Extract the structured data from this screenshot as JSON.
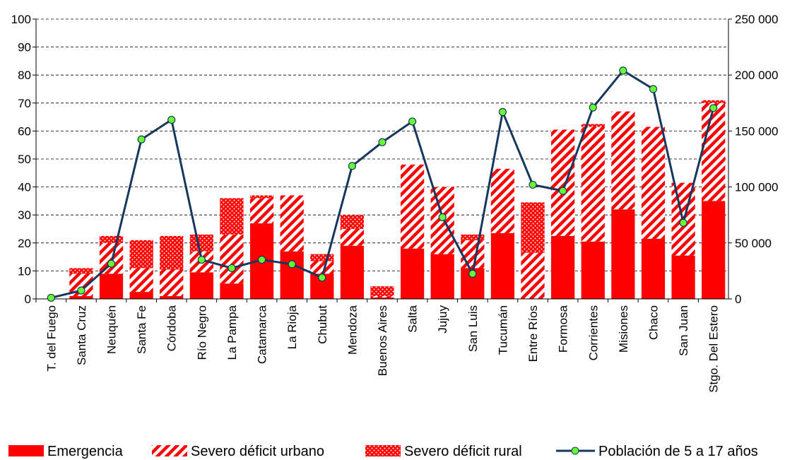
{
  "chart_data": {
    "type": "bar",
    "stacked": true,
    "categories": [
      "T. del Fuego",
      "Santa Cruz",
      "Neuquén",
      "Santa Fe",
      "Córdoba",
      "Río Negro",
      "La Pampa",
      "Catamarca",
      "La Rioja",
      "Chubut",
      "Mendoza",
      "Buenos Aires",
      "Salta",
      "Jujuy",
      "San Luis",
      "Tucumán",
      "Entre Ríos",
      "Formosa",
      "Corrientes",
      "Misiones",
      "Chaco",
      "San Juan",
      "Stgo. Del Estero"
    ],
    "series": [
      {
        "name": "Emergencia",
        "type": "bar",
        "color": "#ff0000",
        "pattern": "solid",
        "values": [
          0,
          1,
          9,
          2.5,
          1,
          9.5,
          5.5,
          27,
          17,
          9,
          19,
          0.5,
          18,
          16,
          11,
          23.5,
          0,
          22.5,
          20.5,
          32,
          21.5,
          15.5,
          35
        ]
      },
      {
        "name": "Severo déficit urbano",
        "type": "bar",
        "color": "#ff0000",
        "pattern": "hatch",
        "values": [
          0,
          8,
          11,
          8.5,
          9.5,
          7.5,
          17.5,
          9,
          20,
          4.5,
          6,
          0.5,
          30,
          24,
          10,
          23,
          16.5,
          38,
          41,
          35,
          40,
          26,
          35
        ]
      },
      {
        "name": "Severo déficit rural",
        "type": "bar",
        "color": "#ff0000",
        "pattern": "dots",
        "values": [
          0,
          2,
          2.5,
          10,
          12,
          6,
          13,
          1,
          0,
          2.5,
          5,
          3.5,
          0,
          0,
          2,
          0,
          18,
          0,
          1,
          0,
          0,
          0,
          1
        ]
      },
      {
        "name": "Población de 5 a 17 años",
        "type": "line",
        "axis": "y2",
        "color": "#17375e",
        "marker_color": "#66ff33",
        "values": [
          1000,
          7500,
          31500,
          142500,
          160000,
          35000,
          27500,
          35000,
          31000,
          19000,
          118750,
          140000,
          158500,
          73000,
          22500,
          167000,
          102000,
          96500,
          171000,
          204000,
          187500,
          68000,
          170500
        ]
      }
    ],
    "ylim": [
      0,
      100
    ],
    "yticks": [
      0,
      10,
      20,
      30,
      40,
      50,
      60,
      70,
      80,
      90,
      100
    ],
    "y2lim": [
      0,
      250000
    ],
    "y2ticks": [
      0,
      {
        "value": 50000,
        "label": "50 000"
      },
      {
        "value": 100000,
        "label": "100 000"
      },
      {
        "value": 150000,
        "label": "150 000"
      },
      {
        "value": 200000,
        "label": "200 000"
      },
      {
        "value": 250000,
        "label": "250 000"
      }
    ],
    "grid": true,
    "legend": "bottom"
  }
}
